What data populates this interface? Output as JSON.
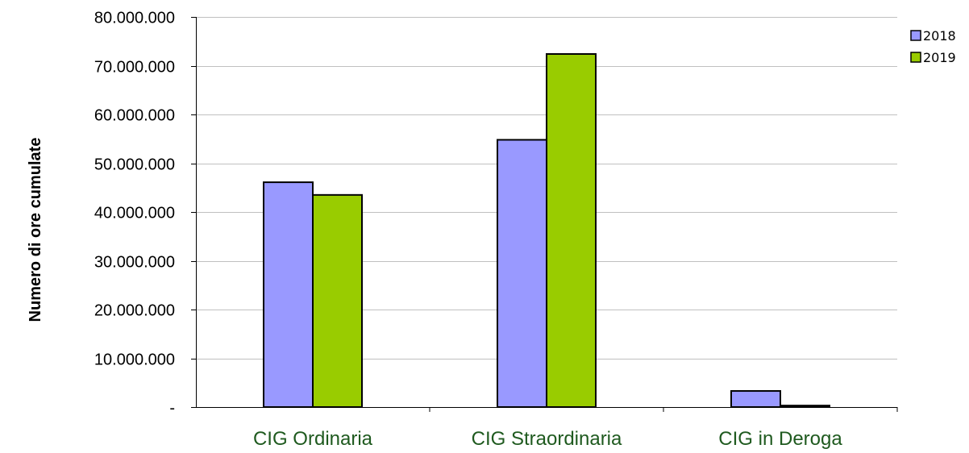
{
  "chart_data": {
    "type": "bar",
    "categories": [
      "CIG Ordinaria",
      "CIG Straordinaria",
      "CIG in Deroga"
    ],
    "series": [
      {
        "name": "2018",
        "values": [
          46100000,
          54800000,
          3300000
        ],
        "color": "#9999ff"
      },
      {
        "name": "2019",
        "values": [
          43500000,
          72400000,
          300000
        ],
        "color": "#99cc00"
      }
    ],
    "title": "",
    "xlabel": "",
    "ylabel": "Numero di ore cumulate",
    "ylim": [
      0,
      80000000
    ],
    "yticks": [
      0,
      10000000,
      20000000,
      30000000,
      40000000,
      50000000,
      60000000,
      70000000,
      80000000
    ],
    "ytick_labels": [
      "-",
      "10.000.000",
      "20.000.000",
      "30.000.000",
      "40.000.000",
      "50.000.000",
      "60.000.000",
      "70.000.000",
      "80.000.000"
    ],
    "grid": true,
    "legend_position": "top-right",
    "colors": {
      "grid": "#c0c0c0",
      "axis": "#000000",
      "bar_outline": "#000000",
      "category_text": "#1f5a1f"
    }
  }
}
